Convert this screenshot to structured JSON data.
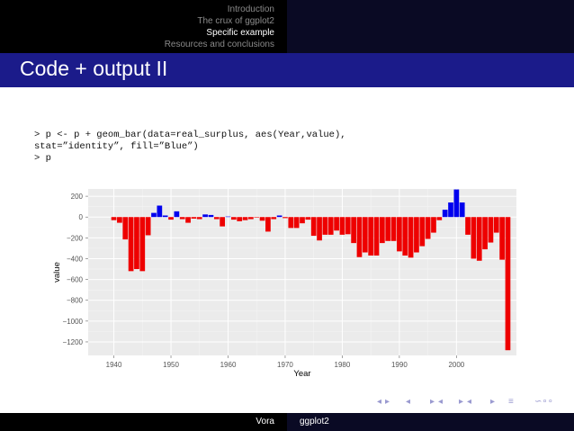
{
  "nav": {
    "items": [
      {
        "label": "Introduction",
        "active": false
      },
      {
        "label": "The crux of ggplot2",
        "active": false
      },
      {
        "label": "Specific example",
        "active": true
      },
      {
        "label": "Resources and conclusions",
        "active": false
      }
    ]
  },
  "slide": {
    "title": "Code + output II"
  },
  "code": {
    "lines": [
      "> p <- p + geom_bar(data=real_surplus, aes(Year,value),",
      "stat=”identity”, fill=”Blue”)",
      "> p"
    ]
  },
  "colors": {
    "positive": "#0000ee",
    "negative": "#ee0000",
    "panel": "#ebebeb",
    "titlebar": "#1b1b8a"
  },
  "nav_symbols": [
    "◂",
    "▸",
    "◂",
    "▸",
    "◂",
    "▸",
    "◂",
    "▸",
    "≡",
    "∽∘∘"
  ],
  "footer": {
    "author": "Vora",
    "title": "ggplot2"
  },
  "chart_data": {
    "type": "bar",
    "xlabel": "Year",
    "ylabel": "value",
    "xlim": [
      1935.5,
      2010.5
    ],
    "ylim": [
      -1330,
      270
    ],
    "x_ticks": [
      1940,
      1950,
      1960,
      1970,
      1980,
      1990,
      2000
    ],
    "y_ticks": [
      200,
      0,
      -200,
      -400,
      -600,
      -800,
      -1000,
      -1200
    ],
    "grid": true,
    "legend": "none",
    "series": [
      {
        "years": [
          1940,
          1941,
          1942,
          1943,
          1944,
          1945,
          1946,
          1947,
          1948,
          1949,
          1950,
          1951,
          1952,
          1953,
          1954,
          1955,
          1956,
          1957,
          1958,
          1959,
          1960,
          1961,
          1962,
          1963,
          1964,
          1965,
          1966,
          1967,
          1968,
          1969,
          1970,
          1971,
          1972,
          1973,
          1974,
          1975,
          1976,
          1977,
          1978,
          1979,
          1980,
          1981,
          1982,
          1983,
          1984,
          1985,
          1986,
          1987,
          1988,
          1989,
          1990,
          1991,
          1992,
          1993,
          1994,
          1995,
          1996,
          1997,
          1998,
          1999,
          2000,
          2001,
          2002,
          2003,
          2004,
          2005,
          2006,
          2007,
          2008,
          2009
        ],
        "values": [
          -30,
          -55,
          -215,
          -520,
          -500,
          -520,
          -175,
          40,
          110,
          15,
          -25,
          55,
          -20,
          -55,
          -15,
          -20,
          25,
          20,
          -20,
          -90,
          5,
          -25,
          -40,
          -30,
          -20,
          -5,
          -35,
          -140,
          -20,
          15,
          -10,
          -105,
          -105,
          -60,
          -25,
          -180,
          -225,
          -170,
          -170,
          -130,
          -170,
          -165,
          -250,
          -385,
          -340,
          -370,
          -370,
          -250,
          -230,
          -230,
          -330,
          -370,
          -390,
          -340,
          -280,
          -210,
          -150,
          -30,
          70,
          140,
          265,
          140,
          -170,
          -400,
          -420,
          -310,
          -245,
          -150,
          -410,
          -1280
        ]
      }
    ]
  }
}
